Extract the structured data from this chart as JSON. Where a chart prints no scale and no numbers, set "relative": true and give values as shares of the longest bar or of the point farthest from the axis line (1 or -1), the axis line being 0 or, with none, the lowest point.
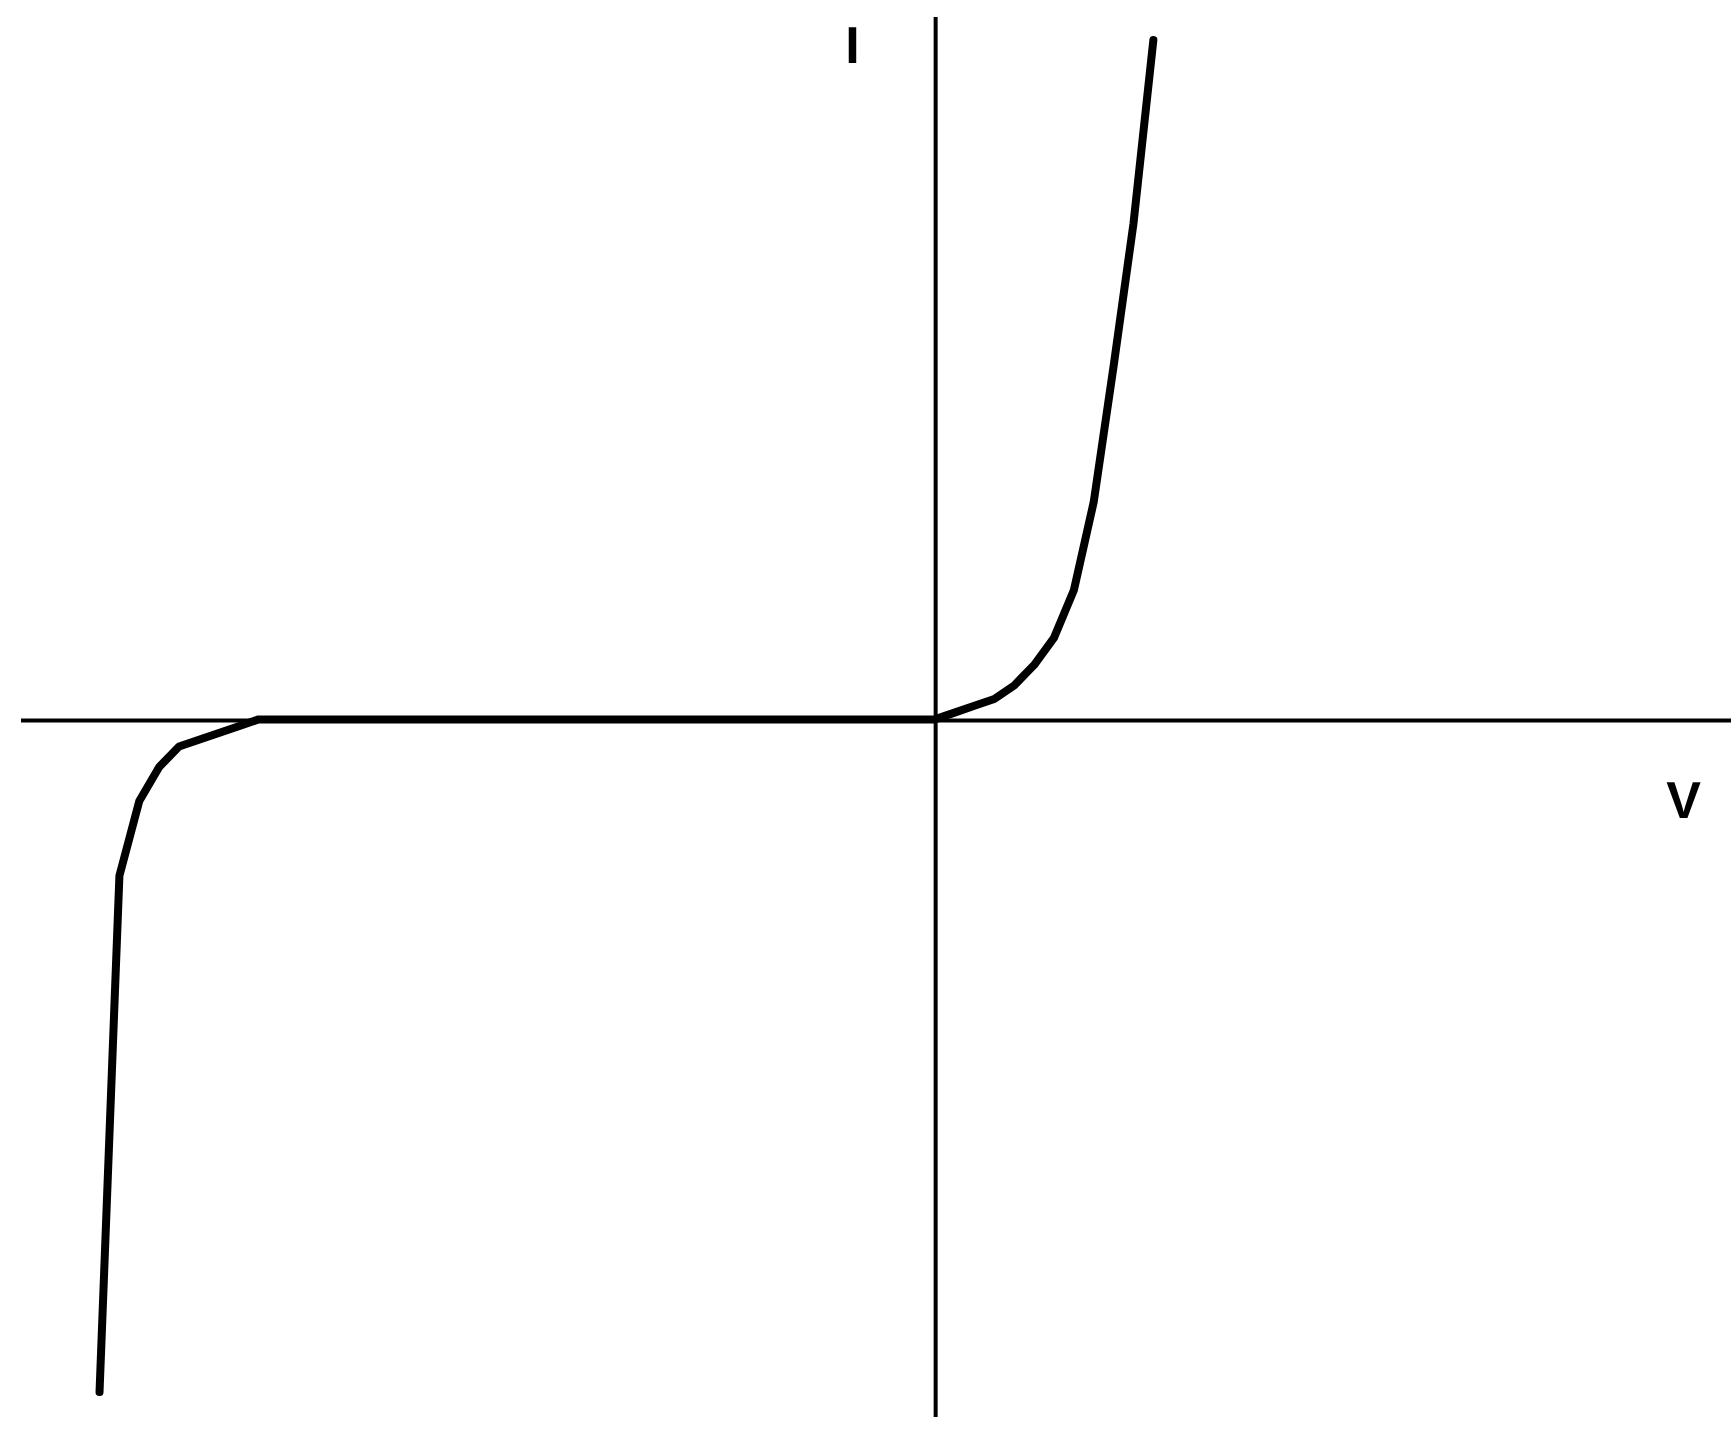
{
  "chart_data": {
    "type": "line",
    "relative": true,
    "xlabel": "V",
    "ylabel": "I",
    "categories": [
      null,
      null,
      null,
      null,
      null,
      null,
      null,
      null,
      null,
      null,
      null,
      null,
      null,
      null,
      null,
      null,
      null,
      null,
      null,
      null,
      null,
      null,
      null,
      null,
      null,
      null,
      null,
      null,
      null,
      null,
      null,
      null,
      null,
      null,
      null,
      null,
      null,
      null,
      null,
      null,
      null,
      null,
      null,
      null,
      null,
      null,
      null,
      null,
      null,
      null,
      null,
      null,
      null,
      null,
      null,
      null,
      null,
      null,
      null,
      null,
      null,
      null,
      null,
      null,
      null,
      null,
      null,
      null,
      null,
      null,
      null,
      null,
      null,
      null,
      null,
      null,
      null,
      null,
      null,
      null,
      null,
      null,
      null,
      null,
      null,
      null,
      null
    ],
    "series": [
      {
        "color": "#000000",
        "values": [
          null,
          null,
          null,
          null,
          -0.99,
          -0.23,
          -0.12,
          -0.07,
          -0.04,
          -0.03,
          -0.02,
          -0.01,
          0,
          0,
          0,
          0,
          0,
          0,
          0,
          0,
          0,
          0,
          0,
          0,
          0,
          0,
          0,
          0,
          0,
          0,
          0,
          0,
          0,
          0,
          0,
          0,
          0,
          0,
          0,
          0,
          0,
          0,
          0,
          0,
          0,
          0,
          0,
          0.01,
          0.02,
          0.03,
          0.05,
          0.08,
          0.12,
          0.19,
          0.32,
          0.52,
          0.73,
          1,
          null,
          null,
          null,
          null,
          null,
          null,
          null,
          null,
          null,
          null,
          null,
          null,
          null,
          null,
          null,
          null,
          null,
          null,
          null,
          null,
          null,
          null,
          null,
          null,
          null,
          null,
          null,
          null,
          null
        ]
      }
    ]
  }
}
